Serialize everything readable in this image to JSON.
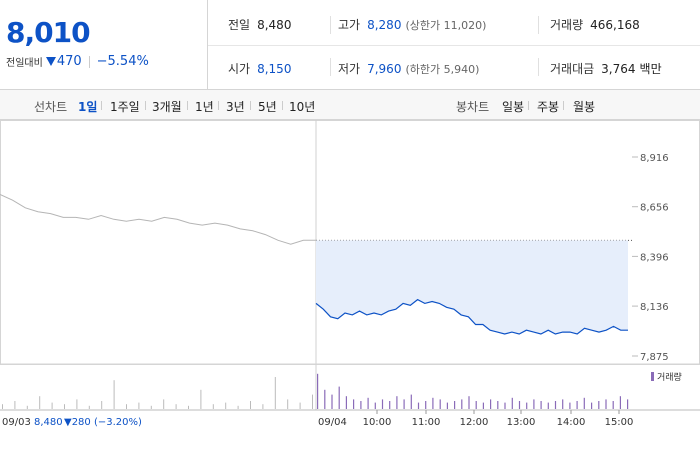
{
  "quote": {
    "price": "8,010",
    "change_label": "전일대비",
    "change_amount": "470",
    "change_percent": "−5.54%",
    "prev_close_label": "전일",
    "prev_close": "8,480",
    "high_label": "고가",
    "high": "8,280",
    "upper_limit": "(상한가 11,020)",
    "volume_label": "거래량",
    "volume": "466,168",
    "open_label": "시가",
    "open": "8,150",
    "low_label": "저가",
    "low": "7,960",
    "lower_limit": "(하한가 5,940)",
    "amount_label": "거래대금",
    "amount": "3,764",
    "amount_unit": "백만"
  },
  "line_tabs": {
    "title": "선차트",
    "items": [
      "1일",
      "1주일",
      "3개월",
      "1년",
      "3년",
      "5년",
      "10년"
    ],
    "active": 0
  },
  "candle_tabs": {
    "title": "봉차트",
    "items": [
      "일봉",
      "주봉",
      "월봉"
    ]
  },
  "chart_data": {
    "type": "line",
    "y_ticks": [
      "8,916",
      "8,656",
      "8,396",
      "8,136",
      "7,875"
    ],
    "ylim": [
      7875,
      8916
    ],
    "baseline": 8480,
    "prev_day": {
      "date": "09/03",
      "summary_price": "8,480",
      "summary_change": "▼280 (−3.20%)",
      "values": [
        8720,
        8690,
        8650,
        8630,
        8620,
        8600,
        8600,
        8590,
        8610,
        8590,
        8580,
        8590,
        8580,
        8600,
        8590,
        8570,
        8560,
        8570,
        8560,
        8540,
        8530,
        8510,
        8480,
        8460,
        8480,
        8480
      ]
    },
    "today": {
      "date": "09/04",
      "values": [
        8150,
        8120,
        8080,
        8070,
        8100,
        8090,
        8110,
        8090,
        8100,
        8090,
        8110,
        8120,
        8150,
        8140,
        8170,
        8150,
        8160,
        8150,
        8130,
        8120,
        8090,
        8080,
        8040,
        8040,
        8010,
        8000,
        7990,
        8000,
        7990,
        8010,
        8000,
        7990,
        8010,
        7990,
        8000,
        8000,
        7990,
        8020,
        8010,
        8000,
        8010,
        8030,
        8010,
        8010
      ]
    },
    "x_ticks": [
      "10:00",
      "11:00",
      "12:00",
      "13:00",
      "14:00",
      "15:00"
    ],
    "legend": "거래량",
    "volume_prev": [
      3,
      5,
      2,
      8,
      4,
      3,
      6,
      2,
      5,
      18,
      3,
      4,
      2,
      6,
      3,
      2,
      12,
      3,
      4,
      2,
      5,
      3,
      20,
      6,
      4,
      9
    ],
    "volume_today": [
      22,
      12,
      9,
      14,
      8,
      6,
      5,
      7,
      4,
      6,
      5,
      8,
      6,
      9,
      4,
      5,
      7,
      6,
      4,
      5,
      6,
      8,
      5,
      4,
      6,
      5,
      4,
      7,
      5,
      4,
      6,
      5,
      4,
      5,
      6,
      4,
      5,
      7,
      4,
      5,
      6,
      5,
      8,
      6
    ]
  },
  "colors": {
    "blue": "#0d52c6",
    "gray_line": "#b5b5b5",
    "fill": "#e6eefb",
    "volume": "#8a6bb8"
  }
}
